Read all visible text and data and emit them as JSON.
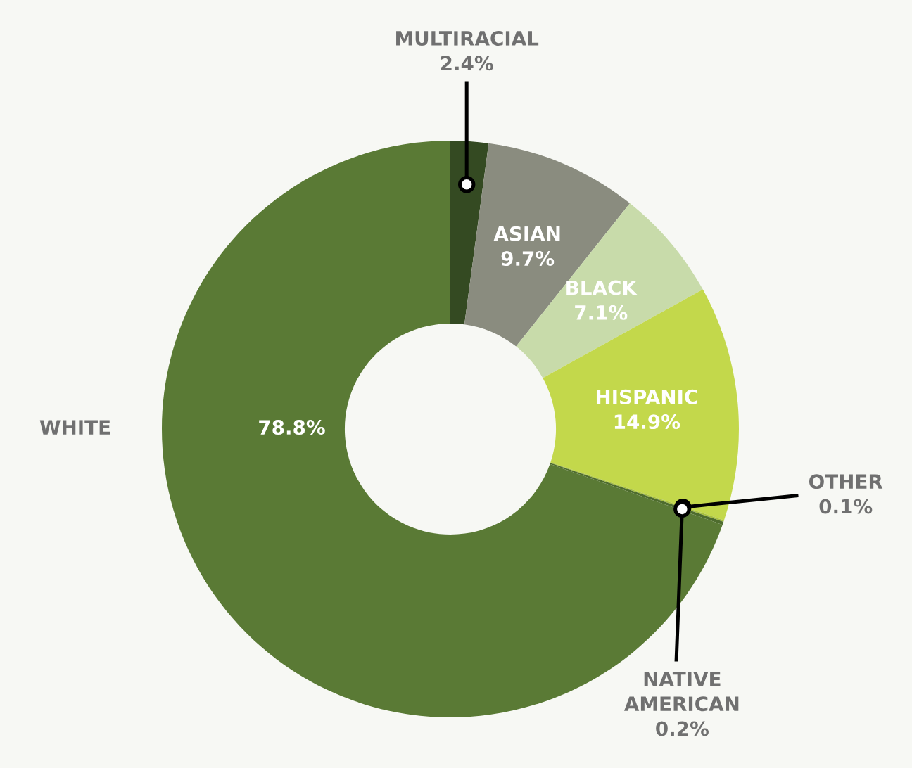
{
  "chart_data": {
    "type": "donut",
    "categories": [
      "MULTIRACIAL",
      "ASIAN",
      "BLACK",
      "HISPANIC",
      "OTHER",
      "NATIVE\nAMERICAN",
      "WHITE"
    ],
    "values": [
      2.4,
      9.7,
      7.1,
      14.9,
      0.1,
      0.2,
      78.8
    ],
    "value_labels": [
      "2.4%",
      "9.7%",
      "7.1%",
      "14.9%",
      "0.1%",
      "0.2%",
      "78.8%"
    ],
    "colors": [
      "#344a22",
      "#8a8c7f",
      "#c8dbaa",
      "#c3d84b",
      "#a8c040",
      "#4e6c2e",
      "#5a7a35"
    ],
    "legend": false
  }
}
